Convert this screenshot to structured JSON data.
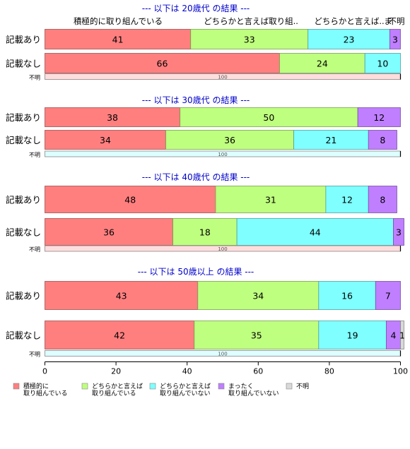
{
  "chart_data": {
    "type": "bar",
    "stacked": true,
    "orientation": "horizontal",
    "header_labels": [
      "積極的に取り組んでいる",
      "どちらかと言えば取り組..",
      "どちらかと言えば..",
      "ま",
      "不明"
    ],
    "legend": [
      {
        "line1": "積極的に",
        "line2": "取り組んでいる",
        "color": "#ff7f7f"
      },
      {
        "line1": "どちらかと言えば",
        "line2": "取り組んでいる",
        "color": "#bfff7f"
      },
      {
        "line1": "どちらかと言えば",
        "line2": "取り組んでいない",
        "color": "#7fffff"
      },
      {
        "line1": "まったく",
        "line2": "取り組んでいない",
        "color": "#bf7fff"
      },
      {
        "line1": "不明",
        "line2": "",
        "color": "#d9d9d9"
      }
    ],
    "groups": [
      {
        "title": "--- 以下は 20歳代 の結果 ---",
        "rows": [
          {
            "label": "記載あり",
            "values": [
              41,
              33,
              23,
              3,
              0
            ]
          },
          {
            "label": "記載なし",
            "values": [
              66,
              24,
              10,
              0,
              0
            ]
          }
        ],
        "unknown": {
          "label": "不明",
          "value": 100,
          "color": "#ffdddd"
        }
      },
      {
        "title": "--- 以下は 30歳代 の結果 ---",
        "rows": [
          {
            "label": "記載あり",
            "values": [
              38,
              50,
              0,
              12,
              0
            ]
          },
          {
            "label": "記載なし",
            "values": [
              34,
              36,
              21,
              8,
              0
            ]
          }
        ],
        "unknown": {
          "label": "不明",
          "value": 100,
          "color": "#ddffff"
        }
      },
      {
        "title": "--- 以下は 40歳代 の結果 ---",
        "rows": [
          {
            "label": "記載あり",
            "values": [
              48,
              31,
              12,
              8,
              0
            ]
          },
          {
            "label": "記載なし",
            "values": [
              36,
              18,
              44,
              3,
              0
            ]
          }
        ],
        "unknown": {
          "label": "不明",
          "value": 100,
          "color": "#ffdddd"
        }
      },
      {
        "title": "--- 以下は 50歳以上 の結果 ---",
        "rows": [
          {
            "label": "記載あり",
            "values": [
              43,
              34,
              16,
              7,
              0
            ]
          },
          {
            "label": "記載なし",
            "values": [
              42,
              35,
              19,
              4,
              1
            ]
          }
        ],
        "unknown": {
          "label": "不明",
          "value": 100,
          "color": "#ddffff"
        }
      }
    ],
    "xlim": [
      0,
      100
    ],
    "xticks": [
      "0",
      "20",
      "40",
      "60",
      "80",
      "100"
    ],
    "grid": false,
    "legend_position": "bottom-left"
  }
}
